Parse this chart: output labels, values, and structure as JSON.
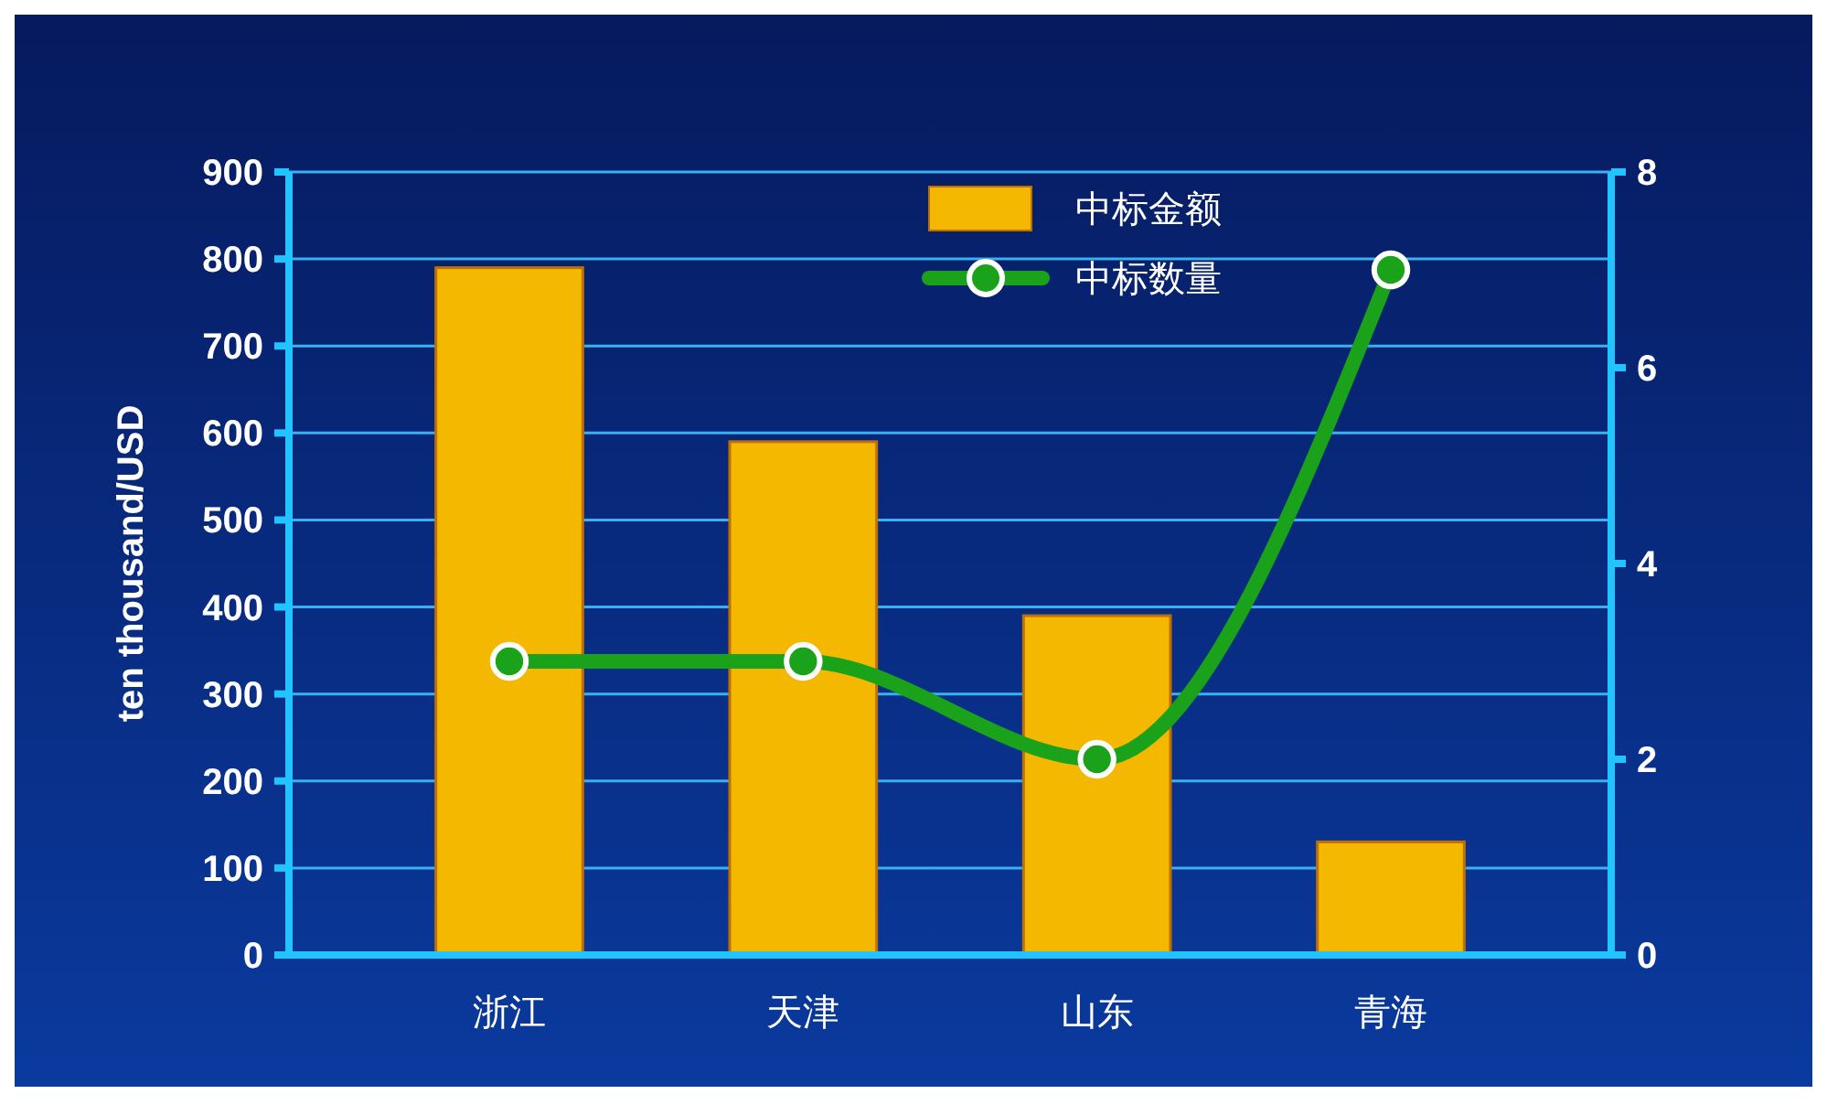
{
  "chart_data": {
    "type": "bar",
    "ylabel": "ten thousand/USD",
    "categories": [
      "浙江",
      "天津",
      "山东",
      "青海"
    ],
    "series": [
      {
        "name": "中标金额",
        "color": "#f5b800",
        "values": [
          790,
          590,
          390,
          130
        ]
      },
      {
        "name": "中标数量",
        "type": "line",
        "axis": "y2",
        "color": "#1aa31a",
        "marker": "circle",
        "values": [
          3,
          3,
          2,
          7
        ]
      }
    ],
    "ylim": [
      0,
      900
    ],
    "yticks": [
      0,
      100,
      200,
      300,
      400,
      500,
      600,
      700,
      800,
      900
    ],
    "y2lim": [
      0,
      8
    ],
    "y2ticks": [
      0,
      2,
      4,
      6,
      8
    ],
    "grid": "y",
    "legend": "top"
  }
}
